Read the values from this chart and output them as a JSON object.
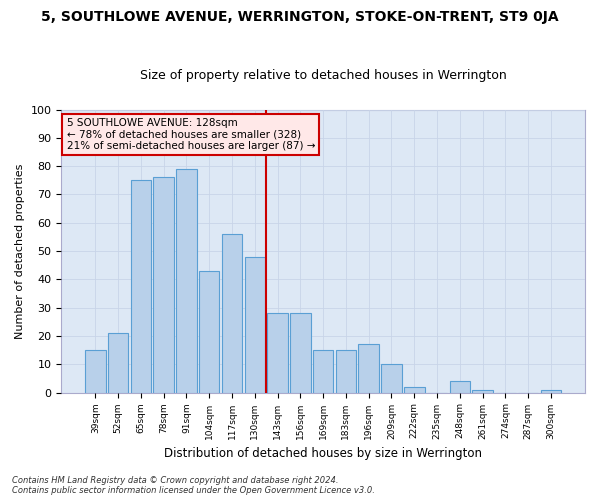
{
  "title": "5, SOUTHLOWE AVENUE, WERRINGTON, STOKE-ON-TRENT, ST9 0JA",
  "subtitle": "Size of property relative to detached houses in Werrington",
  "xlabel": "Distribution of detached houses by size in Werrington",
  "ylabel": "Number of detached properties",
  "categories": [
    "39sqm",
    "52sqm",
    "65sqm",
    "78sqm",
    "91sqm",
    "104sqm",
    "117sqm",
    "130sqm",
    "143sqm",
    "156sqm",
    "169sqm",
    "183sqm",
    "196sqm",
    "209sqm",
    "222sqm",
    "235sqm",
    "248sqm",
    "261sqm",
    "274sqm",
    "287sqm",
    "300sqm"
  ],
  "values": [
    15,
    21,
    75,
    76,
    79,
    43,
    56,
    48,
    28,
    28,
    15,
    15,
    17,
    10,
    2,
    0,
    4,
    1,
    0,
    0,
    1
  ],
  "bar_color": "#b8d0ea",
  "bar_edge_color": "#5a9fd4",
  "grid_color": "#c8d4e8",
  "bg_color": "#dde8f5",
  "fig_color": "#ffffff",
  "redline_x": 7.5,
  "redline_color": "#cc0000",
  "annotation_line1": "5 SOUTHLOWE AVENUE: 128sqm",
  "annotation_line2": "← 78% of detached houses are smaller (328)",
  "annotation_line3": "21% of semi-detached houses are larger (87) →",
  "annotation_box_color": "#ffe8e8",
  "annotation_box_edge": "#cc0000",
  "footer1": "Contains HM Land Registry data © Crown copyright and database right 2024.",
  "footer2": "Contains public sector information licensed under the Open Government Licence v3.0.",
  "ylim": [
    0,
    100
  ],
  "yticks": [
    0,
    10,
    20,
    30,
    40,
    50,
    60,
    70,
    80,
    90,
    100
  ]
}
